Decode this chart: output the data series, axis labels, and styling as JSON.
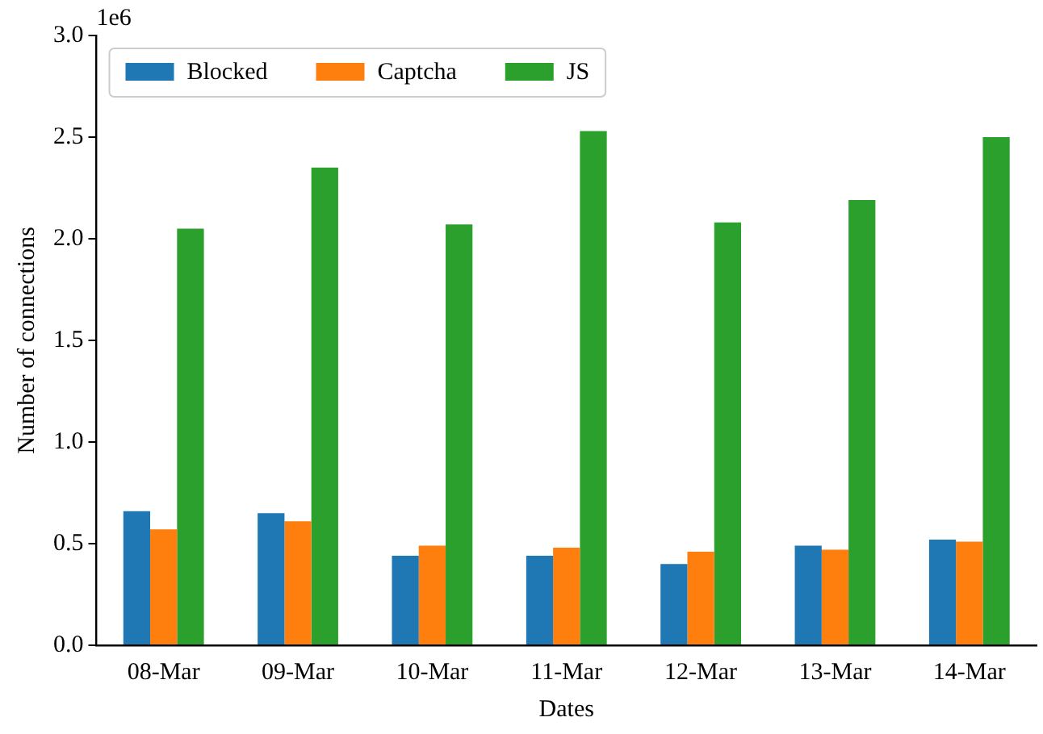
{
  "chart_data": {
    "type": "bar",
    "xlabel": "Dates",
    "ylabel": "Number of connections",
    "annotations": [
      "1e6"
    ],
    "categories": [
      "08-Mar",
      "09-Mar",
      "10-Mar",
      "11-Mar",
      "12-Mar",
      "13-Mar",
      "14-Mar"
    ],
    "series": [
      {
        "name": "Blocked",
        "color": "#1f77b4",
        "values": [
          0.66,
          0.65,
          0.44,
          0.44,
          0.4,
          0.49,
          0.52
        ]
      },
      {
        "name": "Captcha",
        "color": "#ff7f0e",
        "values": [
          0.57,
          0.61,
          0.49,
          0.48,
          0.46,
          0.47,
          0.51
        ]
      },
      {
        "name": "JS",
        "color": "#2ca02c",
        "values": [
          2.05,
          2.35,
          2.07,
          2.53,
          2.08,
          2.19,
          2.5
        ]
      }
    ],
    "ylim": [
      0,
      3
    ],
    "yticks": [
      {
        "value": 0,
        "label": "0.0"
      },
      0.5,
      {
        "value": 1,
        "label": "1.0"
      },
      1.5,
      {
        "value": 2,
        "label": "2.0"
      },
      2.5,
      {
        "value": 3,
        "label": "3.0"
      }
    ],
    "grid": false,
    "legend": "top left"
  }
}
